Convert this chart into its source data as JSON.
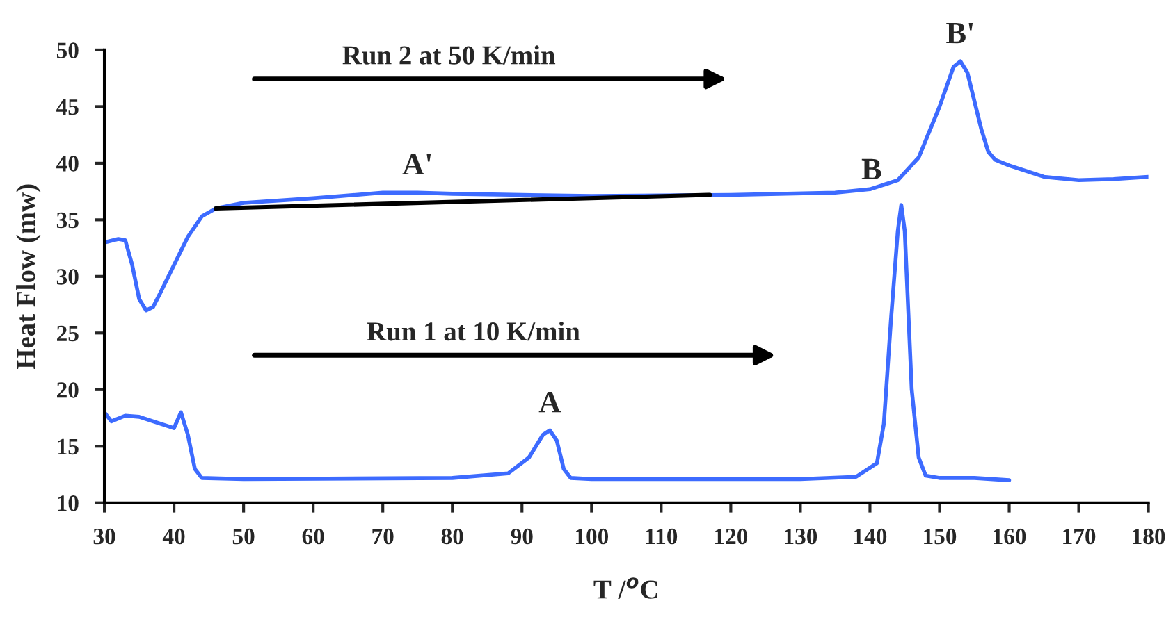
{
  "chart_data": {
    "type": "line",
    "xlabel": "T /$^{o}$C",
    "ylabel": "Heat Flow (mw)",
    "xlim": [
      30,
      180
    ],
    "xticks": [
      30,
      40,
      50,
      60,
      70,
      80,
      90,
      100,
      110,
      120,
      130,
      140,
      150,
      160,
      170,
      180
    ],
    "ylim": [
      10,
      50
    ],
    "yticks": [
      10,
      15,
      20,
      25,
      30,
      35,
      40,
      45,
      50
    ],
    "grid": false,
    "legend": false,
    "series": [
      {
        "color": "#3d6bff",
        "x": [
          30,
          32,
          33,
          34,
          35,
          36,
          37,
          38,
          40,
          42,
          44,
          46,
          50,
          60,
          70,
          75,
          80,
          90,
          100,
          120,
          135,
          140,
          144,
          147,
          150,
          152,
          153,
          154,
          156,
          157,
          158,
          160,
          165,
          170,
          175,
          180
        ],
        "values": [
          33.0,
          33.3,
          33.2,
          31,
          28,
          27,
          27.3,
          28.5,
          31,
          33.5,
          35.3,
          36.0,
          36.5,
          36.9,
          37.4,
          37.4,
          37.3,
          37.2,
          37.1,
          37.2,
          37.4,
          37.7,
          38.5,
          40.5,
          45,
          48.5,
          49,
          48,
          43,
          41,
          40.3,
          39.8,
          38.8,
          38.5,
          38.6,
          38.8
        ]
      },
      {
        "color": "#000000",
        "x": [
          46,
          117
        ],
        "values": [
          36.0,
          37.2
        ]
      },
      {
        "color": "#3d6bff",
        "x": [
          30,
          31,
          33,
          35,
          40,
          41,
          42,
          43,
          44,
          50,
          80,
          88,
          91,
          93,
          94,
          95,
          96,
          97,
          100,
          130,
          138,
          141,
          142,
          143,
          144,
          144.5,
          145,
          146,
          147,
          148,
          150,
          155,
          160
        ],
        "values": [
          18,
          17.2,
          17.7,
          17.6,
          16.6,
          18,
          16,
          13,
          12.2,
          12.1,
          12.2,
          12.6,
          14,
          16,
          16.4,
          15.5,
          13,
          12.2,
          12.1,
          12.1,
          12.3,
          13.5,
          17,
          26,
          34,
          36.3,
          34,
          20,
          14,
          12.4,
          12.2,
          12.2,
          12.0
        ]
      }
    ],
    "annotations": [
      "Run 2 at 50 K/min",
      "Run 1 at 10 K/min",
      {
        "text": "A'",
        "x": 75,
        "y": 37.4
      },
      {
        "text": "A",
        "x": 94,
        "y": 16.4
      },
      {
        "text": "B",
        "x": 144.5,
        "y": 36.3
      },
      {
        "text": "B'",
        "x": 153,
        "y": 49
      }
    ]
  }
}
